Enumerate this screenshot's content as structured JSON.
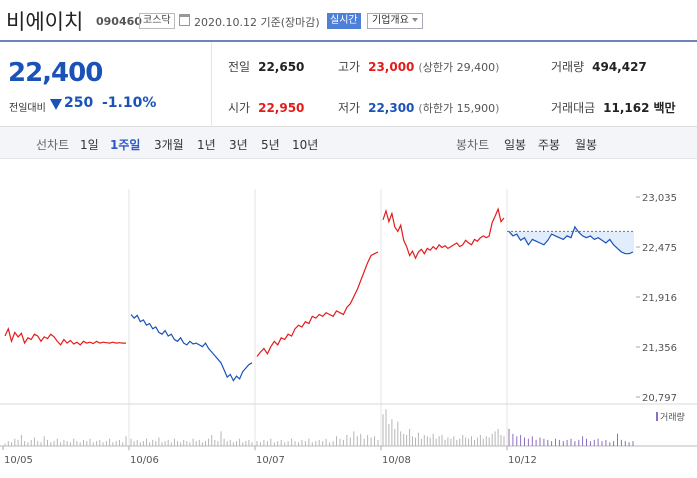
{
  "header": {
    "stock_name": "비에이치",
    "stock_code": "090460",
    "market": "코스닥",
    "date_text": "2020.10.12 기준(장마감)",
    "realtime_label": "실시간",
    "company_info_label": "기업개요"
  },
  "price": {
    "current": "22,400",
    "change_label": "전일대비",
    "change_value": "250",
    "change_pct": "-1.10%",
    "direction": "down",
    "prev_close_label": "전일",
    "prev_close": "22,650",
    "open_label": "시가",
    "open": "22,950",
    "high_label": "고가",
    "high": "23,000",
    "upper_limit_label": "상한가",
    "upper_limit": "29,400",
    "low_label": "저가",
    "low": "22,300",
    "lower_limit_label": "하한가",
    "lower_limit": "15,900",
    "volume_label": "거래량",
    "volume": "494,427",
    "amount_label": "거래대금",
    "amount": "11,162",
    "amount_unit": "백만",
    "colors": {
      "up": "#e51b1b",
      "down": "#1a52b8"
    }
  },
  "periods": {
    "line_label": "선차트",
    "line_items": [
      "1일",
      "1주일",
      "3개월",
      "1년",
      "3년",
      "5년",
      "10년"
    ],
    "active": "1주일",
    "candle_label": "봉차트",
    "candle_items": [
      "일봉",
      "주봉",
      "월봉"
    ]
  },
  "chart_data": {
    "type": "line",
    "y_ticks": [
      "23,035",
      "22,475",
      "21,916",
      "21,356",
      "20,797"
    ],
    "ylim": [
      20797,
      23035
    ],
    "x_ticks": [
      "10/05",
      "10/06",
      "10/07",
      "10/08",
      "10/12"
    ],
    "prev_close": 22650,
    "volume_label": "거래량",
    "days": [
      {
        "date": "10/05",
        "color": "#e51b1b",
        "prices": [
          21480,
          21560,
          21420,
          21520,
          21470,
          21510,
          21400,
          21460,
          21440,
          21500,
          21480,
          21420,
          21470,
          21450,
          21500,
          21470,
          21420,
          21380,
          21440,
          21400,
          21430,
          21390,
          21410,
          21380,
          21420,
          21400,
          21410,
          21395,
          21420,
          21400,
          21410,
          21405,
          21400,
          21410,
          21400,
          21405,
          21400,
          21400
        ]
      },
      {
        "date": "10/06",
        "color": "#1a52b8",
        "prices": [
          21720,
          21680,
          21710,
          21640,
          21660,
          21600,
          21620,
          21560,
          21580,
          21520,
          21500,
          21540,
          21480,
          21500,
          21440,
          21420,
          21460,
          21400,
          21380,
          21420,
          21390,
          21400,
          21380,
          21360,
          21400,
          21340,
          21300,
          21260,
          21220,
          21180,
          21100,
          21020,
          21050,
          20980,
          21030,
          21000,
          21080,
          21120,
          21160,
          21180
        ]
      },
      {
        "date": "10/07",
        "color": "#e51b1b",
        "prices": [
          21250,
          21300,
          21340,
          21280,
          21360,
          21420,
          21380,
          21460,
          21440,
          21500,
          21480,
          21560,
          21600,
          21580,
          21640,
          21620,
          21700,
          21680,
          21720,
          21700,
          21740,
          21720,
          21700,
          21760,
          21740,
          21720,
          21800,
          21840,
          21920,
          22000,
          22100,
          22200,
          22300,
          22380,
          22400,
          22420
        ]
      },
      {
        "date": "10/08",
        "color": "#e51b1b",
        "prices": [
          22780,
          22880,
          22760,
          22850,
          22700,
          22650,
          22720,
          22550,
          22480,
          22380,
          22430,
          22350,
          22420,
          22450,
          22400,
          22460,
          22440,
          22480,
          22450,
          22500,
          22470,
          22490,
          22460,
          22480,
          22500,
          22520,
          22480,
          22500,
          22550,
          22520,
          22500,
          22560,
          22540,
          22580,
          22600,
          22580,
          22600,
          22750,
          22820,
          22900,
          22760,
          22800
        ]
      },
      {
        "date": "10/12",
        "color": "#1a52b8",
        "prices": [
          22650,
          22600,
          22620,
          22550,
          22580,
          22500,
          22560,
          22540,
          22520,
          22500,
          22550,
          22620,
          22600,
          22580,
          22560,
          22600,
          22580,
          22700,
          22640,
          22600,
          22580,
          22600,
          22560,
          22580,
          22550,
          22520,
          22560,
          22500,
          22460,
          22420,
          22400,
          22400,
          22420
        ]
      }
    ],
    "volumes": [
      [
        2,
        4,
        3,
        6,
        5,
        9,
        4,
        3,
        5,
        7,
        4,
        3,
        8,
        5,
        3,
        4,
        6,
        3,
        5,
        4,
        3,
        6,
        4,
        3,
        5,
        4,
        6,
        3,
        4,
        5,
        3,
        4,
        6,
        3,
        4,
        5,
        3,
        8
      ],
      [
        6,
        4,
        5,
        3,
        4,
        6,
        3,
        5,
        4,
        7,
        3,
        4,
        5,
        3,
        6,
        4,
        3,
        5,
        4,
        3,
        6,
        4,
        5,
        3,
        4,
        6,
        9,
        5,
        4,
        12,
        6,
        4,
        5,
        3,
        4,
        6,
        3,
        4,
        5,
        3
      ],
      [
        4,
        3,
        5,
        4,
        6,
        3,
        4,
        5,
        3,
        4,
        6,
        4,
        3,
        5,
        4,
        6,
        3,
        4,
        5,
        4,
        6,
        3,
        4,
        8,
        6,
        5,
        9,
        7,
        12,
        8,
        10,
        6,
        9,
        7,
        8,
        5
      ],
      [
        26,
        30,
        18,
        22,
        14,
        20,
        12,
        10,
        9,
        14,
        8,
        7,
        11,
        6,
        9,
        8,
        7,
        10,
        6,
        8,
        9,
        5,
        7,
        6,
        8,
        5,
        6,
        9,
        7,
        6,
        8,
        5,
        7,
        9,
        6,
        8,
        7,
        10,
        12,
        14,
        9,
        8
      ],
      [
        14,
        10,
        8,
        9,
        7,
        6,
        8,
        5,
        7,
        6,
        5,
        4,
        6,
        5,
        4,
        5,
        6,
        4,
        5,
        8,
        6,
        4,
        5,
        6,
        4,
        5,
        3,
        4,
        10,
        5,
        4,
        3,
        4
      ]
    ]
  }
}
